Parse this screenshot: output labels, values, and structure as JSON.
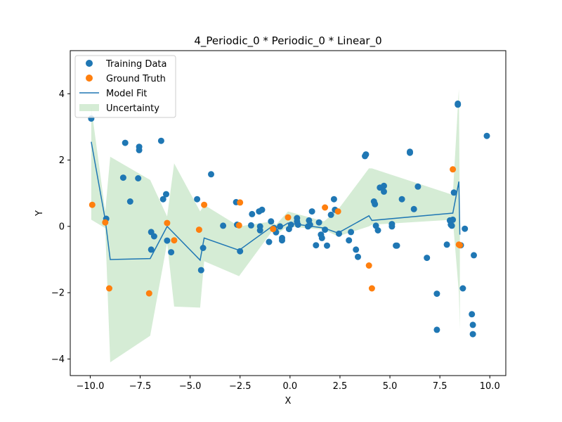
{
  "chart_data": {
    "type": "scatter",
    "title": "4_Periodic_0 * Periodic_0 * Linear_0",
    "xlabel": "X",
    "ylabel": "Y",
    "xlim": [
      -11.0,
      10.8
    ],
    "ylim": [
      -4.5,
      5.3
    ],
    "xticks": [
      -10.0,
      -7.5,
      -5.0,
      -2.5,
      0.0,
      2.5,
      5.0,
      7.5,
      10.0
    ],
    "xtick_labels": [
      "−10.0",
      "−7.5",
      "−5.0",
      "−2.5",
      "0.0",
      "2.5",
      "5.0",
      "7.5",
      "10.0"
    ],
    "yticks": [
      -4,
      -2,
      0,
      2,
      4
    ],
    "ytick_labels": [
      "−4",
      "−2",
      "0",
      "2",
      "4"
    ],
    "grid": false,
    "legend_position": "top-left",
    "colors": {
      "training": "#1f77b4",
      "ground_truth": "#ff7f0e",
      "model_fit": "#1f77b4",
      "uncertainty": "#2ca02c"
    },
    "legend": [
      "Training Data",
      "Ground Truth",
      "Model Fit",
      "Uncertainty"
    ],
    "series": [
      {
        "name": "Training Data",
        "kind": "scatter",
        "points": [
          [
            -9.95,
            3.25
          ],
          [
            -9.2,
            0.23
          ],
          [
            -8.35,
            1.47
          ],
          [
            -8.25,
            2.52
          ],
          [
            -8.0,
            0.75
          ],
          [
            -7.6,
            1.45
          ],
          [
            -7.55,
            2.3
          ],
          [
            -7.55,
            2.4
          ],
          [
            -6.95,
            -0.7
          ],
          [
            -6.95,
            -0.17
          ],
          [
            -6.8,
            -0.3
          ],
          [
            -6.45,
            2.58
          ],
          [
            -6.35,
            0.82
          ],
          [
            -6.2,
            0.97
          ],
          [
            -6.15,
            -0.43
          ],
          [
            -5.95,
            -0.78
          ],
          [
            -4.65,
            0.82
          ],
          [
            -4.45,
            -1.32
          ],
          [
            -4.35,
            -0.65
          ],
          [
            -3.95,
            1.57
          ],
          [
            -3.35,
            0.02
          ],
          [
            -2.7,
            0.73
          ],
          [
            -2.65,
            0.05
          ],
          [
            -2.5,
            -0.75
          ],
          [
            -1.95,
            0.03
          ],
          [
            -1.9,
            0.37
          ],
          [
            -1.55,
            0.45
          ],
          [
            -1.5,
            0.0
          ],
          [
            -1.5,
            -0.12
          ],
          [
            -1.4,
            0.5
          ],
          [
            -1.05,
            -0.47
          ],
          [
            -0.95,
            0.15
          ],
          [
            -0.8,
            -0.05
          ],
          [
            -0.7,
            -0.18
          ],
          [
            -0.5,
            0.0
          ],
          [
            -0.4,
            -0.35
          ],
          [
            -0.4,
            -0.42
          ],
          [
            -0.05,
            -0.08
          ],
          [
            0.05,
            0.05
          ],
          [
            0.35,
            0.25
          ],
          [
            0.35,
            0.15
          ],
          [
            0.4,
            0.05
          ],
          [
            0.9,
            0.0
          ],
          [
            0.95,
            0.18
          ],
          [
            1.0,
            0.05
          ],
          [
            1.1,
            0.45
          ],
          [
            1.3,
            -0.57
          ],
          [
            1.45,
            0.12
          ],
          [
            1.55,
            -0.25
          ],
          [
            1.6,
            -0.35
          ],
          [
            1.75,
            -0.1
          ],
          [
            1.85,
            -0.58
          ],
          [
            2.05,
            0.35
          ],
          [
            2.2,
            0.82
          ],
          [
            2.25,
            0.5
          ],
          [
            2.45,
            -0.22
          ],
          [
            2.95,
            -0.42
          ],
          [
            3.05,
            -0.17
          ],
          [
            3.3,
            -0.7
          ],
          [
            3.4,
            -0.92
          ],
          [
            3.75,
            2.12
          ],
          [
            3.8,
            2.17
          ],
          [
            4.2,
            0.75
          ],
          [
            4.25,
            0.67
          ],
          [
            4.3,
            0.02
          ],
          [
            4.4,
            -0.12
          ],
          [
            4.5,
            1.17
          ],
          [
            4.7,
            1.22
          ],
          [
            4.7,
            1.05
          ],
          [
            5.1,
            0.07
          ],
          [
            5.1,
            0.0
          ],
          [
            5.3,
            -0.58
          ],
          [
            5.35,
            -0.58
          ],
          [
            5.6,
            0.82
          ],
          [
            6.0,
            2.22
          ],
          [
            6.0,
            2.25
          ],
          [
            6.2,
            0.52
          ],
          [
            6.4,
            1.2
          ],
          [
            6.85,
            -0.95
          ],
          [
            7.35,
            -2.03
          ],
          [
            7.35,
            -3.12
          ],
          [
            7.85,
            -0.55
          ],
          [
            8.0,
            0.18
          ],
          [
            8.05,
            0.05
          ],
          [
            8.1,
            0.02
          ],
          [
            8.15,
            0.2
          ],
          [
            8.2,
            1.02
          ],
          [
            8.4,
            3.67
          ],
          [
            8.4,
            3.7
          ],
          [
            8.55,
            -0.57
          ],
          [
            8.65,
            -1.87
          ],
          [
            8.75,
            -0.07
          ],
          [
            9.1,
            -2.65
          ],
          [
            9.15,
            -2.97
          ],
          [
            9.15,
            -3.25
          ],
          [
            9.2,
            -0.87
          ],
          [
            9.85,
            2.73
          ]
        ]
      },
      {
        "name": "Ground Truth",
        "kind": "scatter",
        "points": [
          [
            -9.9,
            0.65
          ],
          [
            -9.25,
            0.12
          ],
          [
            -9.05,
            -1.87
          ],
          [
            -7.05,
            -2.02
          ],
          [
            -6.15,
            0.1
          ],
          [
            -5.8,
            -0.42
          ],
          [
            -4.55,
            -0.1
          ],
          [
            -4.3,
            0.65
          ],
          [
            -2.5,
            0.72
          ],
          [
            -2.55,
            0.03
          ],
          [
            -0.85,
            -0.08
          ],
          [
            -0.1,
            0.27
          ],
          [
            1.75,
            0.57
          ],
          [
            2.4,
            0.45
          ],
          [
            3.95,
            -1.18
          ],
          [
            4.1,
            -1.87
          ],
          [
            8.15,
            1.72
          ],
          [
            8.45,
            -0.55
          ],
          [
            8.5,
            -0.57
          ]
        ]
      },
      {
        "name": "Model Fit",
        "kind": "line",
        "points": [
          [
            -9.95,
            2.55
          ],
          [
            -9.25,
            0.2
          ],
          [
            -9.0,
            -1.0
          ],
          [
            -7.0,
            -0.97
          ],
          [
            -6.15,
            0.0
          ],
          [
            -4.5,
            -1.02
          ],
          [
            -4.3,
            -0.35
          ],
          [
            -2.55,
            -0.72
          ],
          [
            -0.9,
            0.0
          ],
          [
            -0.7,
            -0.12
          ],
          [
            -0.1,
            0.1
          ],
          [
            1.7,
            -0.05
          ],
          [
            2.4,
            -0.2
          ],
          [
            3.95,
            0.32
          ],
          [
            4.1,
            0.18
          ],
          [
            8.15,
            0.4
          ],
          [
            8.45,
            1.35
          ],
          [
            8.5,
            -0.25
          ]
        ]
      },
      {
        "name": "Uncertainty",
        "kind": "band",
        "x": [
          -9.95,
          -9.25,
          -9.0,
          -7.0,
          -6.15,
          -5.8,
          -4.5,
          -4.3,
          -2.55,
          -0.9,
          -0.7,
          -0.1,
          1.7,
          2.4,
          3.95,
          4.1,
          8.15,
          8.45,
          8.5
        ],
        "lower": [
          0.2,
          -0.05,
          -4.1,
          -3.3,
          -0.5,
          -2.42,
          -2.45,
          -1.05,
          -1.5,
          -0.15,
          -0.25,
          0.0,
          -0.1,
          -0.3,
          0.0,
          0.05,
          0.2,
          -2.0,
          -3.1
        ],
        "upper": [
          3.6,
          0.45,
          2.1,
          1.4,
          0.3,
          1.9,
          0.45,
          0.65,
          0.0,
          0.15,
          0.05,
          0.45,
          0.15,
          0.5,
          1.75,
          1.75,
          0.95,
          4.15,
          0.1
        ]
      }
    ]
  }
}
